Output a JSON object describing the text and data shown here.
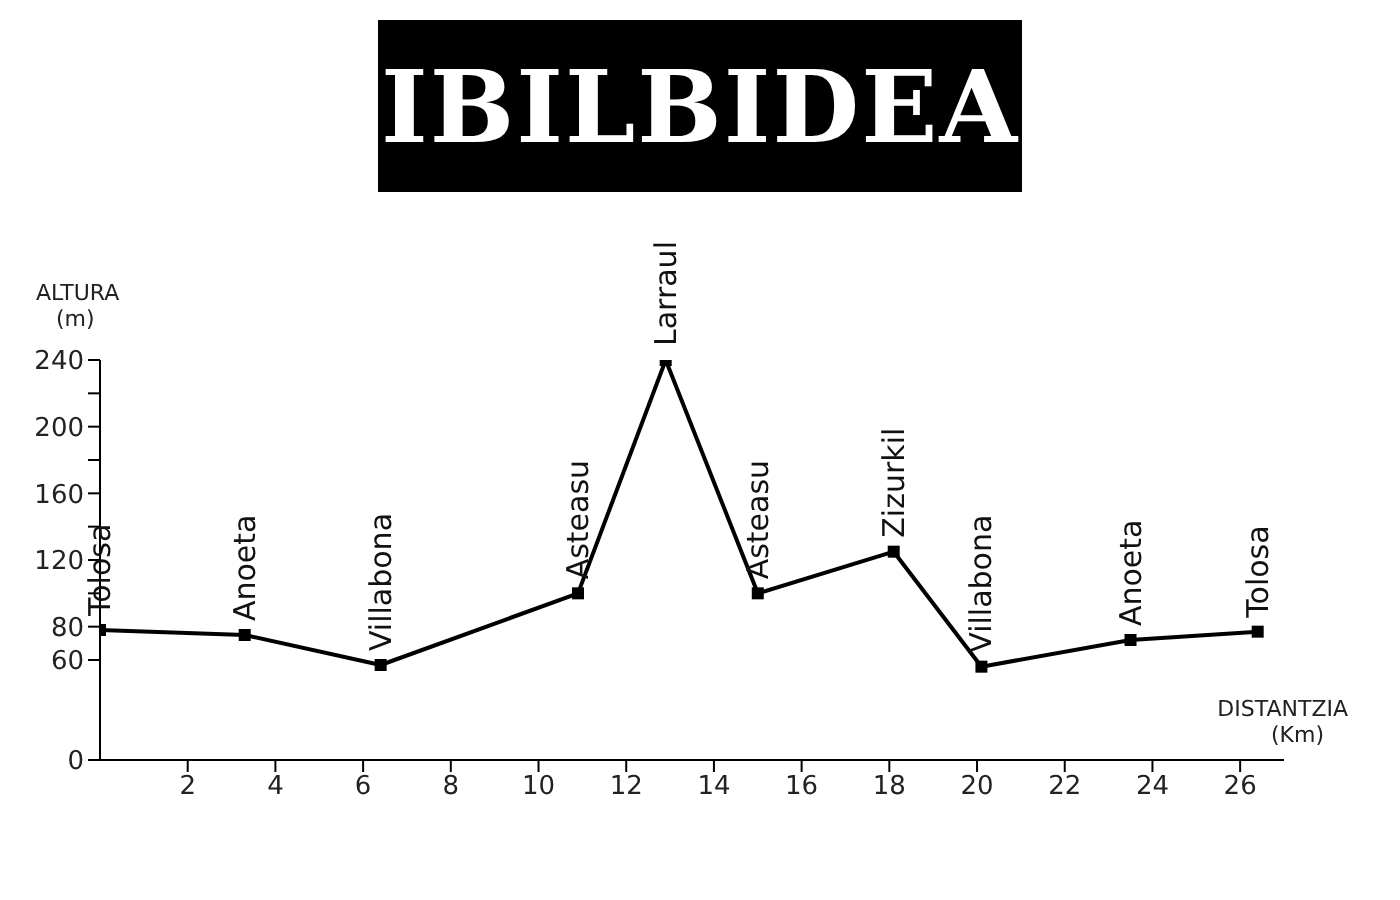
{
  "chart_data": {
    "type": "line",
    "title": "IBILBIDEA",
    "xlabel": "DISTANTZIA (Km)",
    "ylabel": "ALTURA (m)",
    "x": [
      0,
      3.3,
      6.4,
      10.9,
      12.9,
      15.0,
      18.1,
      20.1,
      23.5,
      26.4
    ],
    "series": [
      {
        "color": "#000000",
        "values": [
          78,
          75,
          57,
          100,
          240,
          100,
          125,
          56,
          72,
          77
        ]
      }
    ],
    "xlim": [
      0,
      27
    ],
    "xticks": [
      2,
      4,
      6,
      8,
      10,
      12,
      14,
      16,
      18,
      20,
      22,
      24,
      26
    ],
    "ylim": [
      0,
      240
    ],
    "yticks": [
      0,
      60,
      80,
      {
        "value": 100,
        "label": null
      },
      120,
      {
        "value": 140,
        "label": null
      },
      160,
      {
        "value": 180,
        "label": null
      },
      200,
      {
        "value": 220,
        "label": null
      },
      240
    ],
    "marker": "square",
    "grid": false,
    "annotations": [
      {
        "text": "Tolosa",
        "x": 0,
        "y": 78
      },
      {
        "text": "Anoeta",
        "x": 3.3,
        "y": 75
      },
      {
        "text": "Villabona",
        "x": 6.4,
        "y": 57
      },
      {
        "text": "Asteasu",
        "x": 10.9,
        "y": 100
      },
      {
        "text": "Larraul",
        "x": 12.9,
        "y": 240
      },
      {
        "text": "Asteasu",
        "x": 15.0,
        "y": 100
      },
      {
        "text": "Zizurkil",
        "x": 18.1,
        "y": 125
      },
      {
        "text": "Villabona",
        "x": 20.1,
        "y": 56
      },
      {
        "text": "Anoeta",
        "x": 23.5,
        "y": 72
      },
      {
        "text": "Tolosa",
        "x": 26.4,
        "y": 77
      }
    ]
  }
}
